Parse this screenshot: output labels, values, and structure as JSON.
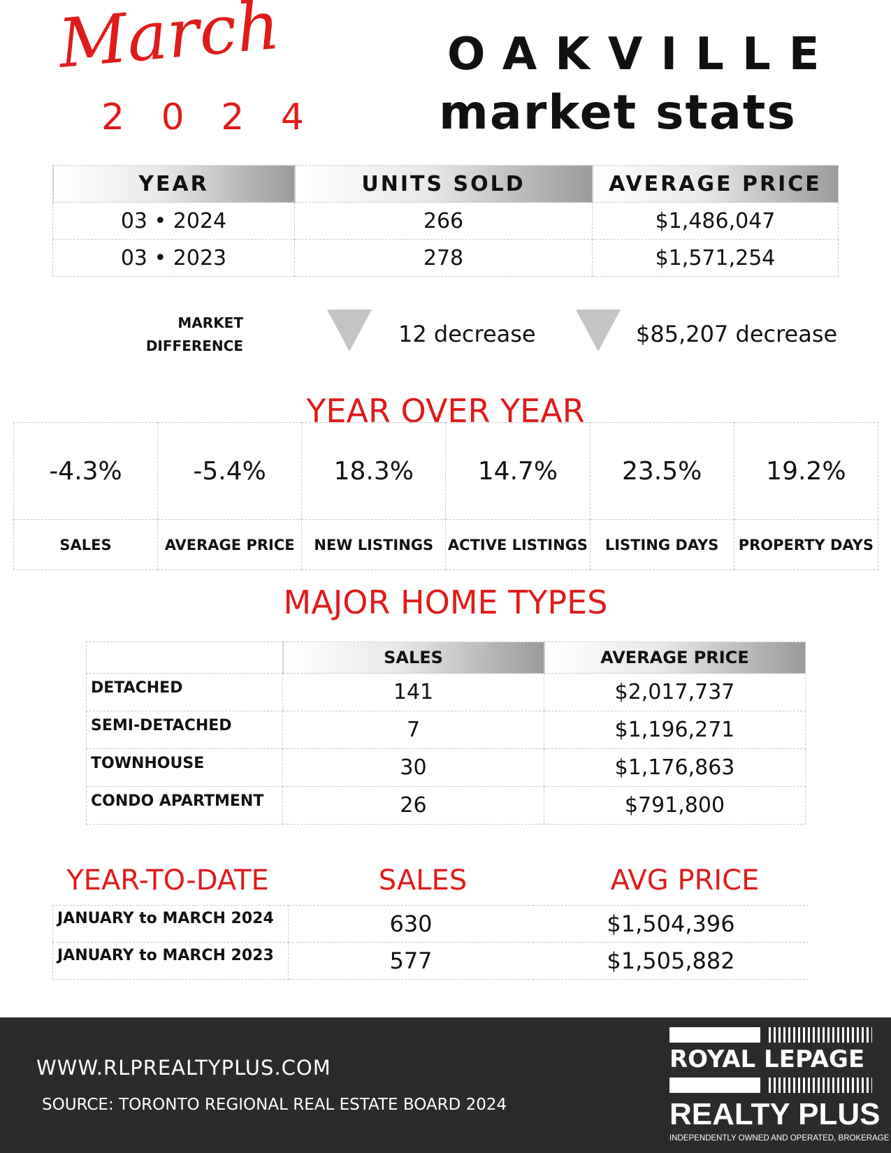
{
  "header": {
    "month": "March",
    "year": "2 0 2 4",
    "city": "OAKVILLE",
    "subtitle": "market stats"
  },
  "summary_table": {
    "headers": [
      "YEAR",
      "UNITS SOLD",
      "AVERAGE PRICE"
    ],
    "rows": [
      [
        "03 • 2024",
        "266",
        "$1,486,047"
      ],
      [
        "03 • 2023",
        "278",
        "$1,571,254"
      ]
    ]
  },
  "market_difference": {
    "label_line1": "MARKET",
    "label_line2": "DIFFERENCE",
    "units": "12 decrease",
    "price": "$85,207 decrease"
  },
  "year_over_year": {
    "title": "YEAR OVER YEAR",
    "values": [
      "-4.3%",
      "-5.4%",
      "18.3%",
      "14.7%",
      "23.5%",
      "19.2%"
    ],
    "labels": [
      "SALES",
      "AVERAGE PRICE",
      "NEW LISTINGS",
      "ACTIVE LISTINGS",
      "LISTING DAYS",
      "PROPERTY DAYS"
    ]
  },
  "major_home_types": {
    "title": "MAJOR HOME TYPES",
    "headers": [
      "SALES",
      "AVERAGE PRICE"
    ],
    "rows": [
      [
        "DETACHED",
        "141",
        "$2,017,737"
      ],
      [
        "SEMI-DETACHED",
        "7",
        "$1,196,271"
      ],
      [
        "TOWNHOUSE",
        "30",
        "$1,176,863"
      ],
      [
        "CONDO APARTMENT",
        "26",
        "$791,800"
      ]
    ]
  },
  "year_to_date": {
    "headers": [
      "YEAR-TO-DATE",
      "SALES",
      "AVG PRICE"
    ],
    "rows": [
      [
        "JANUARY to MARCH 2024",
        "630",
        "$1,504,396"
      ],
      [
        "JANUARY to MARCH 2023",
        "577",
        "$1,505,882"
      ]
    ]
  },
  "footer": {
    "url": "WWW.RLPREALTYPLUS.COM",
    "source": "SOURCE: TORONTO REGIONAL REAL ESTATE BOARD 2024",
    "logo_line1": "ROYAL LEPAGE",
    "logo_line2": "REALTY PLUS",
    "logo_tagline": "INDEPENDENTLY OWNED AND OPERATED, BROKERAGE"
  },
  "colors": {
    "accent_red": "#e01b1b",
    "footer_bg": "#2b2b2b",
    "header_gradient": "#9a9a9a"
  }
}
